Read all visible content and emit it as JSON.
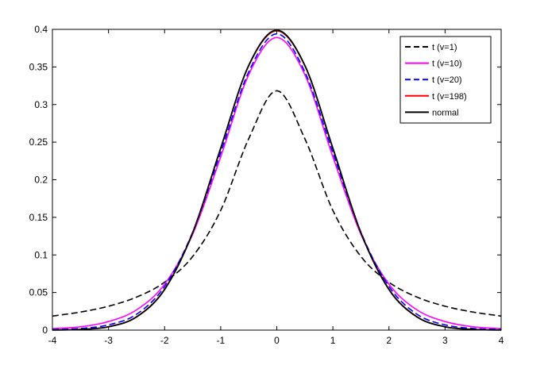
{
  "chart_data": {
    "type": "line",
    "title": "",
    "xlabel": "",
    "ylabel": "",
    "xlim": [
      -4,
      4
    ],
    "ylim": [
      0,
      0.4
    ],
    "grid": false,
    "legend_position": "top-right",
    "x_ticks": [
      -4,
      -3,
      -2,
      -1,
      0,
      1,
      2,
      3,
      4
    ],
    "x_tick_labels": [
      "-4",
      "-3",
      "-2",
      "-1",
      "0",
      "1",
      "2",
      "3",
      "4"
    ],
    "y_ticks": [
      0,
      0.05,
      0.1,
      0.15,
      0.2,
      0.25,
      0.3,
      0.35,
      0.4
    ],
    "y_tick_labels": [
      "0",
      "0.05",
      "0.1",
      "0.15",
      "0.2",
      "0.25",
      "0.3",
      "0.35",
      "0.4"
    ],
    "x": [
      -4,
      -3.5,
      -3,
      -2.5,
      -2,
      -1.5,
      -1,
      -0.5,
      0,
      0.5,
      1,
      1.5,
      2,
      2.5,
      3,
      3.5,
      4
    ],
    "series": [
      {
        "name": "t (v=1)",
        "color": "#000000",
        "dash": "dashed",
        "values": [
          0.0187,
          0.024,
          0.0318,
          0.0439,
          0.0637,
          0.0979,
          0.1592,
          0.2546,
          0.3183,
          0.2546,
          0.1592,
          0.0979,
          0.0637,
          0.0439,
          0.0318,
          0.024,
          0.0187
        ]
      },
      {
        "name": "t (v=10)",
        "color": "#ff00ff",
        "dash": "solid",
        "values": [
          0.002,
          0.0044,
          0.0114,
          0.0269,
          0.0611,
          0.1274,
          0.2304,
          0.3397,
          0.3891,
          0.3397,
          0.2304,
          0.1274,
          0.0611,
          0.0269,
          0.0114,
          0.0044,
          0.002
        ]
      },
      {
        "name": "t (v=20)",
        "color": "#0000ff",
        "dash": "dashed",
        "values": [
          0.0007,
          0.0022,
          0.007,
          0.0211,
          0.0581,
          0.1302,
          0.236,
          0.3435,
          0.394,
          0.3435,
          0.236,
          0.1302,
          0.0581,
          0.0211,
          0.007,
          0.0022,
          0.0007
        ]
      },
      {
        "name": "t (v=198)",
        "color": "#ff0000",
        "dash": "solid",
        "values": [
          0.0002,
          0.0009,
          0.0046,
          0.0178,
          0.0544,
          0.1295,
          0.2417,
          0.3516,
          0.3979,
          0.3516,
          0.2417,
          0.1295,
          0.0544,
          0.0178,
          0.0046,
          0.0009,
          0.0002
        ]
      },
      {
        "name": "normal",
        "color": "#000000",
        "dash": "solid",
        "values": [
          0.0001,
          0.0009,
          0.0044,
          0.0175,
          0.054,
          0.1295,
          0.242,
          0.3521,
          0.3989,
          0.3521,
          0.242,
          0.1295,
          0.054,
          0.0175,
          0.0044,
          0.0009,
          0.0001
        ]
      }
    ]
  }
}
